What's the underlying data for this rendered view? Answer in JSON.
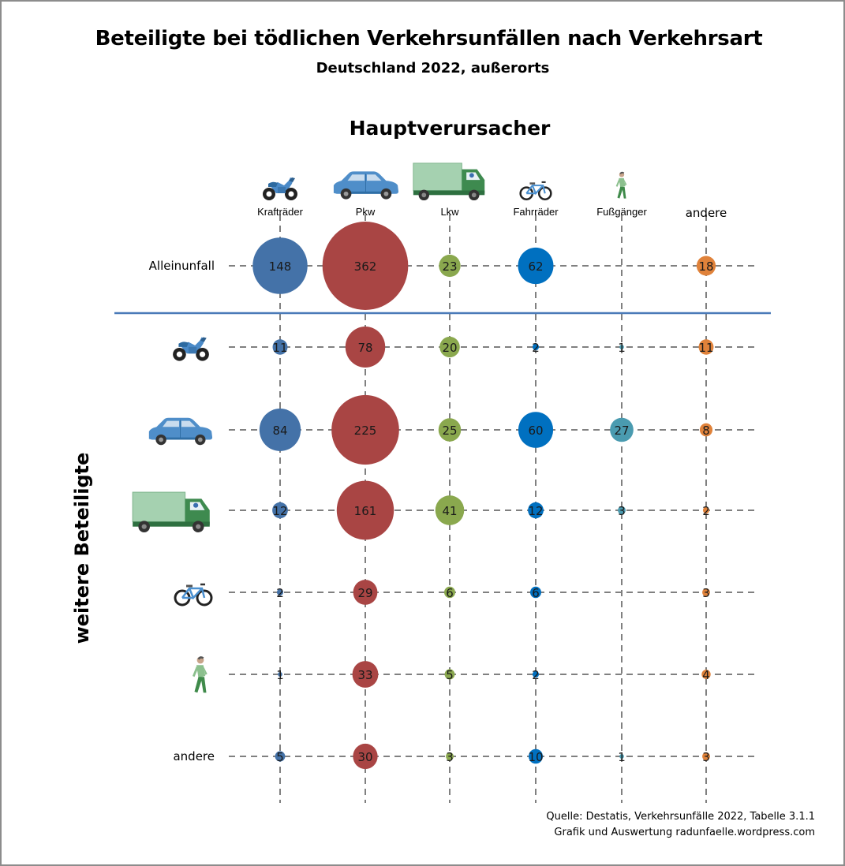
{
  "header": {
    "title": "Beteiligte bei tödlichen Verkehrsunfällen nach Verkehrsart",
    "subtitle": "Deutschland 2022, außerorts"
  },
  "footer": {
    "source_line1": "Quelle: Destatis, Verkehrsunfälle 2022, Tabelle 3.1.1",
    "source_line2": "Grafik und Auswertung radunfaelle.wordpress.com"
  },
  "chart_data": {
    "type": "bubble-matrix",
    "title": "Beteiligte bei tödlichen Verkehrsunfällen nach Verkehrsart",
    "subtitle": "Deutschland 2022, außerorts",
    "xlabel": "Hauptverursacher",
    "ylabel": "weitere Beteiligte",
    "columns": [
      {
        "label": "Krafträder",
        "icon": "motorcycle-icon",
        "color": "#4472a8"
      },
      {
        "label": "Pkw",
        "icon": "car-icon",
        "color": "#a94544"
      },
      {
        "label": "Lkw",
        "icon": "truck-icon",
        "color": "#8aa84e"
      },
      {
        "label": "Fahrräder",
        "icon": "bicycle-icon",
        "color": "#0070c0"
      },
      {
        "label": "Fußgänger",
        "icon": "pedestrian-icon",
        "color": "#4a9bb0"
      },
      {
        "label": "andere",
        "icon": null,
        "color": "#e0823a"
      }
    ],
    "rows": [
      {
        "label": "Alleinunfall",
        "icon": null,
        "values": [
          148,
          362,
          23,
          62,
          null,
          18
        ]
      },
      {
        "label": "",
        "icon": "motorcycle-icon",
        "values": [
          11,
          78,
          20,
          2,
          1,
          11
        ]
      },
      {
        "label": "",
        "icon": "car-icon",
        "values": [
          84,
          225,
          25,
          60,
          27,
          8
        ]
      },
      {
        "label": "",
        "icon": "truck-icon",
        "values": [
          12,
          161,
          41,
          12,
          3,
          2
        ]
      },
      {
        "label": "",
        "icon": "bicycle-icon",
        "values": [
          2,
          29,
          6,
          6,
          null,
          3
        ]
      },
      {
        "label": "",
        "icon": "pedestrian-icon",
        "values": [
          1,
          33,
          5,
          2,
          null,
          4
        ]
      },
      {
        "label": "andere",
        "icon": null,
        "values": [
          5,
          30,
          3,
          10,
          1,
          3
        ]
      }
    ],
    "separator_after_row": 0,
    "separator_color": "#4a7ab8",
    "grid": "dashed",
    "grid_color": "#808080"
  }
}
